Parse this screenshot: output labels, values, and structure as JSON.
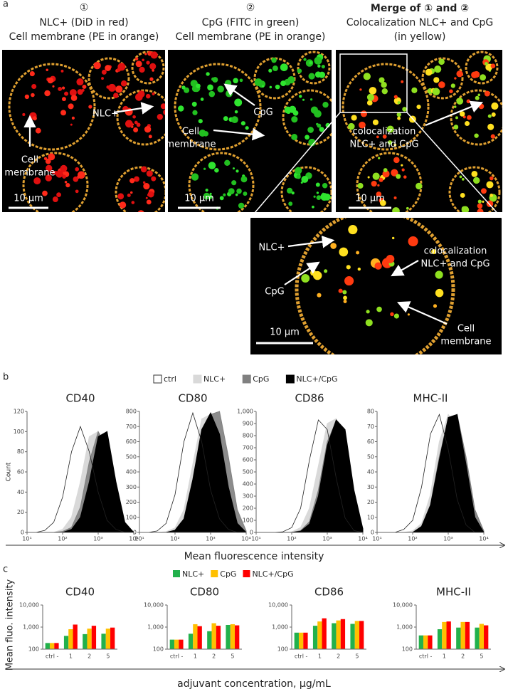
{
  "figure": {
    "panel_labels": [
      "a",
      "b",
      "c"
    ],
    "columns": [
      {
        "number": "①",
        "lines": [
          "NLC+ (DiD in red)",
          "Cell membrane (PE in orange)"
        ]
      },
      {
        "number": "②",
        "lines": [
          "CpG (FITC in green)",
          "Cell membrane (PE in orange)"
        ]
      },
      {
        "number": "",
        "lines": [
          "Merge of ① and ②",
          "Colocalization NLC+ and CpG",
          "(in yellow)"
        ]
      }
    ],
    "images": [
      {
        "labels": [
          [
            "NLC+"
          ],
          [
            "Cell",
            "membrane"
          ]
        ],
        "scale": "10 µm"
      },
      {
        "labels": [
          [
            "CpG"
          ],
          [
            "Cell",
            "membrane"
          ]
        ],
        "scale": "10 µm"
      },
      {
        "labels": [
          [
            "colocalization",
            "NLC+ and CpG"
          ]
        ],
        "scale": "10 µm"
      },
      {
        "labels": [
          [
            "NLC+"
          ],
          [
            "CpG"
          ],
          [
            "colocalization",
            "NLC+ and CpG"
          ],
          [
            "Cell",
            "membrane"
          ]
        ],
        "scale": "10 µm"
      }
    ]
  },
  "chart_data": [
    {
      "type": "line",
      "xlabel": "Mean fluorescence intensity",
      "ylabel": "Count",
      "xscale": "log",
      "xlim": [
        10,
        10000
      ],
      "xticks": [
        {
          "value": 10,
          "label": "10¹"
        },
        {
          "value": 100,
          "label": "10²"
        },
        {
          "value": 1000,
          "label": "10³"
        },
        {
          "value": 10000,
          "label": "10⁴"
        }
      ],
      "x": [
        10,
        17.8,
        31.6,
        56.2,
        100,
        178,
        316,
        562,
        1000,
        1778,
        3162,
        5623,
        10000
      ],
      "series": [
        {
          "name": "ctrl",
          "color": "#ffffff"
        },
        {
          "name": "NLC+",
          "color": "#d9d9d9"
        },
        {
          "name": "CpG",
          "color": "#808080"
        },
        {
          "name": "NLC+/CpG",
          "color": "#000000"
        }
      ],
      "panels": [
        {
          "title": "CD40",
          "ylim": [
            0,
            120
          ],
          "yticks": [
            0,
            20,
            40,
            60,
            80,
            100,
            120
          ],
          "values": [
            [
              0,
              0,
              2,
              10,
              35,
              80,
              105,
              80,
              40,
              12,
              3,
              0,
              0
            ],
            [
              0,
              0,
              0,
              0,
              3,
              15,
              50,
              95,
              100,
              55,
              15,
              2,
              0
            ],
            [
              0,
              0,
              0,
              0,
              1,
              5,
              25,
              70,
              100,
              85,
              35,
              6,
              0
            ],
            [
              0,
              0,
              0,
              0,
              0,
              3,
              15,
              50,
              95,
              100,
              50,
              10,
              0
            ]
          ]
        },
        {
          "title": "CD80",
          "ylim": [
            0,
            800
          ],
          "yticks": [
            0,
            100,
            200,
            300,
            400,
            500,
            600,
            700,
            800
          ],
          "values": [
            [
              0,
              0,
              10,
              60,
              250,
              600,
              790,
              600,
              280,
              90,
              20,
              0,
              0
            ],
            [
              0,
              0,
              0,
              5,
              30,
              150,
              450,
              750,
              780,
              500,
              150,
              20,
              0
            ],
            [
              0,
              0,
              0,
              0,
              10,
              60,
              250,
              550,
              780,
              800,
              500,
              150,
              10
            ],
            [
              0,
              0,
              0,
              0,
              15,
              90,
              350,
              680,
              790,
              650,
              300,
              60,
              0
            ]
          ]
        },
        {
          "title": "CD86",
          "ylim": [
            0,
            1000
          ],
          "yticks": [
            0,
            100,
            200,
            300,
            400,
            500,
            600,
            700,
            800,
            900,
            {
              "value": 1000,
              "label": "1,000"
            }
          ],
          "values": [
            [
              0,
              0,
              0,
              5,
              40,
              200,
              600,
              930,
              850,
              450,
              120,
              15,
              0
            ],
            [
              0,
              0,
              0,
              0,
              5,
              40,
              200,
              550,
              900,
              940,
              550,
              150,
              10
            ],
            [
              0,
              0,
              0,
              0,
              0,
              15,
              90,
              350,
              750,
              920,
              800,
              300,
              30
            ],
            [
              0,
              0,
              0,
              0,
              0,
              10,
              70,
              300,
              720,
              930,
              850,
              350,
              30
            ]
          ]
        },
        {
          "title": "MHC-II",
          "ylim": [
            0,
            80
          ],
          "yticks": [
            0,
            10,
            20,
            30,
            40,
            50,
            60,
            70,
            80
          ],
          "values": [
            [
              0,
              0,
              0,
              2,
              8,
              30,
              65,
              78,
              55,
              22,
              5,
              0,
              0
            ],
            [
              0,
              0,
              0,
              0,
              1,
              6,
              25,
              60,
              78,
              70,
              35,
              8,
              0
            ],
            [
              0,
              0,
              0,
              0,
              0,
              4,
              18,
              50,
              75,
              78,
              50,
              15,
              1
            ],
            [
              0,
              0,
              0,
              0,
              0,
              4,
              18,
              48,
              76,
              78,
              45,
              10,
              0
            ]
          ]
        }
      ]
    },
    {
      "type": "bar",
      "xlabel": "adjuvant concentration, μg/mL",
      "ylabel": "Mean fluo. intensity",
      "yscale": "log",
      "ylim": [
        100,
        10000
      ],
      "yticks": [
        100,
        {
          "value": 1000,
          "label": "1,000"
        },
        {
          "value": 10000,
          "label": "10,000"
        }
      ],
      "categories": [
        "ctrl -",
        "1",
        "2",
        "5"
      ],
      "series": [
        {
          "name": "NLC+",
          "color": "#22b14c"
        },
        {
          "name": "CpG",
          "color": "#ffc000"
        },
        {
          "name": "NLC+/CpG",
          "color": "#ff0000"
        }
      ],
      "panels": [
        {
          "title": "CD40",
          "values": [
            [
              190,
              400,
              480,
              500
            ],
            [
              190,
              800,
              850,
              850
            ],
            [
              190,
              1300,
              1150,
              950
            ]
          ]
        },
        {
          "title": "CD80",
          "values": [
            [
              270,
              500,
              650,
              1250
            ],
            [
              270,
              1350,
              1500,
              1350
            ],
            [
              270,
              1100,
              1150,
              1200
            ]
          ]
        },
        {
          "title": "CD86",
          "values": [
            [
              560,
              1150,
              1500,
              1400
            ],
            [
              560,
              1800,
              2000,
              1900
            ],
            [
              560,
              2500,
              2300,
              1900
            ]
          ]
        },
        {
          "title": "MHC-II",
          "values": [
            [
              420,
              800,
              950,
              950
            ],
            [
              420,
              1700,
              1700,
              1400
            ],
            [
              420,
              1800,
              1700,
              1200
            ]
          ]
        }
      ]
    }
  ]
}
